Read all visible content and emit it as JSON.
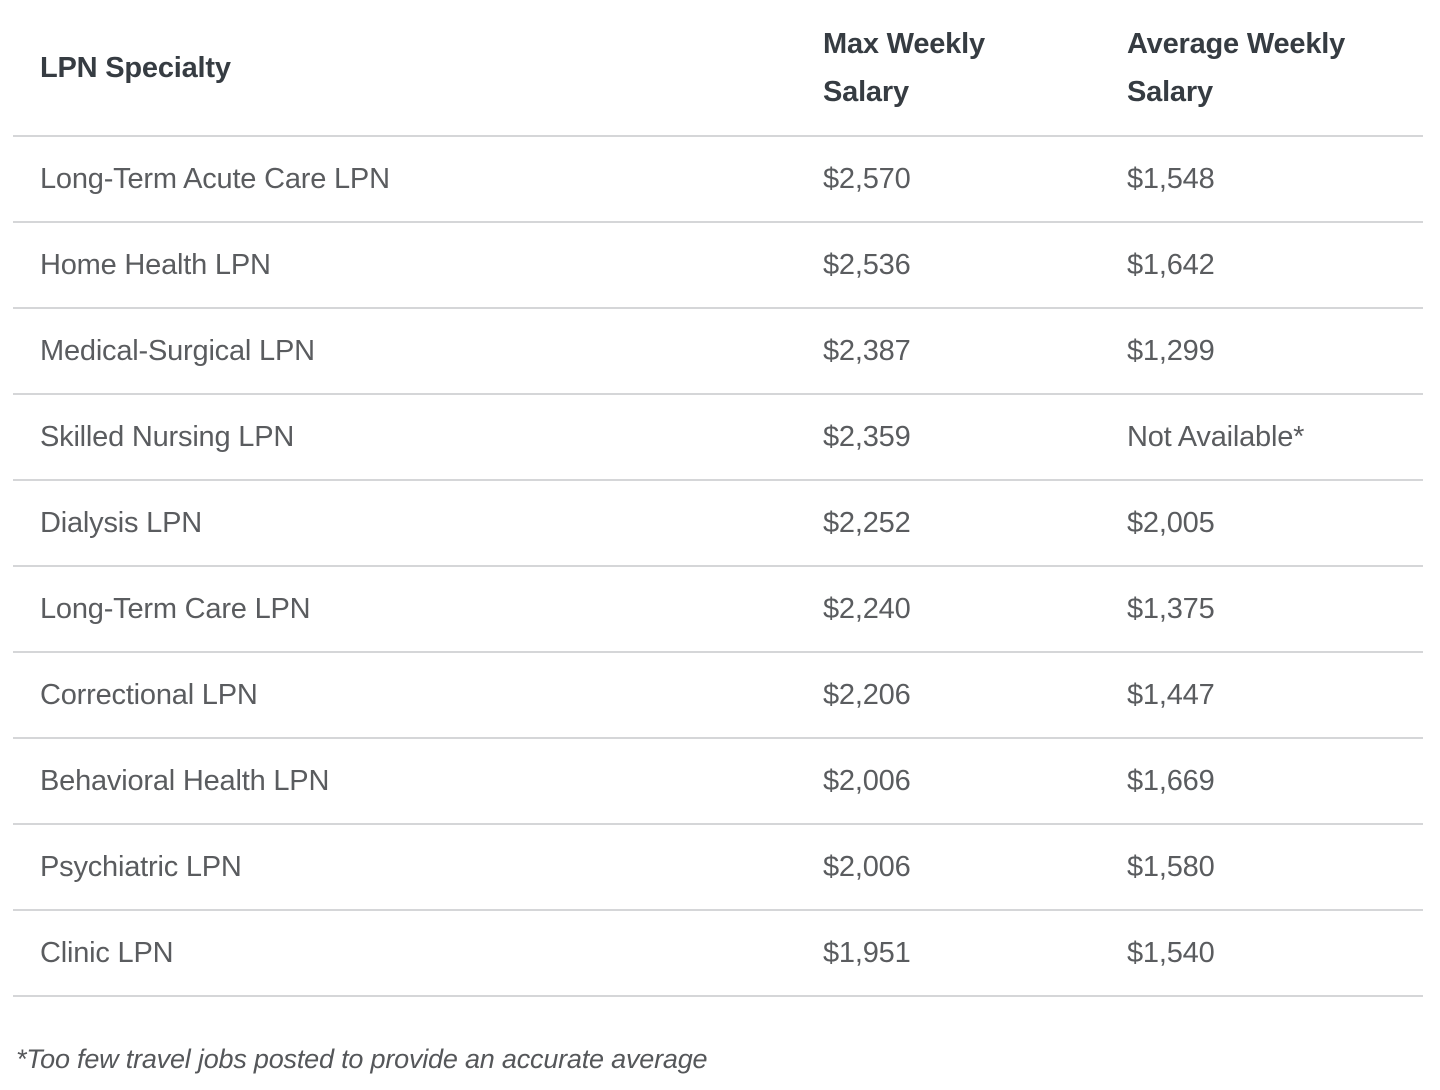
{
  "table": {
    "header": {
      "specialty": "LPN Specialty",
      "max": "Max Weekly\nSalary",
      "avg": "Average Weekly\nSalary"
    },
    "rows": [
      {
        "specialty": "Long-Term Acute Care LPN",
        "max": "$2,570",
        "avg": "$1,548"
      },
      {
        "specialty": "Home Health LPN",
        "max": "$2,536",
        "avg": "$1,642"
      },
      {
        "specialty": "Medical-Surgical LPN",
        "max": "$2,387",
        "avg": "$1,299"
      },
      {
        "specialty": "Skilled Nursing LPN",
        "max": "$2,359",
        "avg": "Not Available*"
      },
      {
        "specialty": "Dialysis LPN",
        "max": "$2,252",
        "avg": "$2,005"
      },
      {
        "specialty": "Long-Term Care LPN",
        "max": "$2,240",
        "avg": "$1,375"
      },
      {
        "specialty": "Correctional LPN",
        "max": "$2,206",
        "avg": "$1,447"
      },
      {
        "specialty": "Behavioral Health LPN",
        "max": "$2,006",
        "avg": "$1,669"
      },
      {
        "specialty": "Psychiatric LPN",
        "max": "$2,006",
        "avg": "$1,580"
      },
      {
        "specialty": "Clinic LPN",
        "max": "$1,951",
        "avg": "$1,540"
      }
    ],
    "footnote": "*Too few travel jobs posted to provide an accurate average"
  },
  "chart_data": {
    "type": "table",
    "columns": [
      "LPN Specialty",
      "Max Weekly Salary",
      "Average Weekly Salary"
    ],
    "rows": [
      [
        "Long-Term Acute Care LPN",
        2570,
        1548
      ],
      [
        "Home Health LPN",
        2536,
        1642
      ],
      [
        "Medical-Surgical LPN",
        2387,
        1299
      ],
      [
        "Skilled Nursing LPN",
        2359,
        null
      ],
      [
        "Dialysis LPN",
        2252,
        2005
      ],
      [
        "Long-Term Care LPN",
        2240,
        1375
      ],
      [
        "Correctional LPN",
        2206,
        1447
      ],
      [
        "Behavioral Health LPN",
        2006,
        1669
      ],
      [
        "Psychiatric LPN",
        2006,
        1580
      ],
      [
        "Clinic LPN",
        1951,
        1540
      ]
    ],
    "notes": "Average for Skilled Nursing LPN shown as 'Not Available*'; footnote: *Too few travel jobs posted to provide an accurate average"
  },
  "colors": {
    "header_text": "#363c42",
    "body_text": "#5a5c5f",
    "divider": "#d5d6d8",
    "footnote_text": "#55575a",
    "background": "#ffffff"
  }
}
